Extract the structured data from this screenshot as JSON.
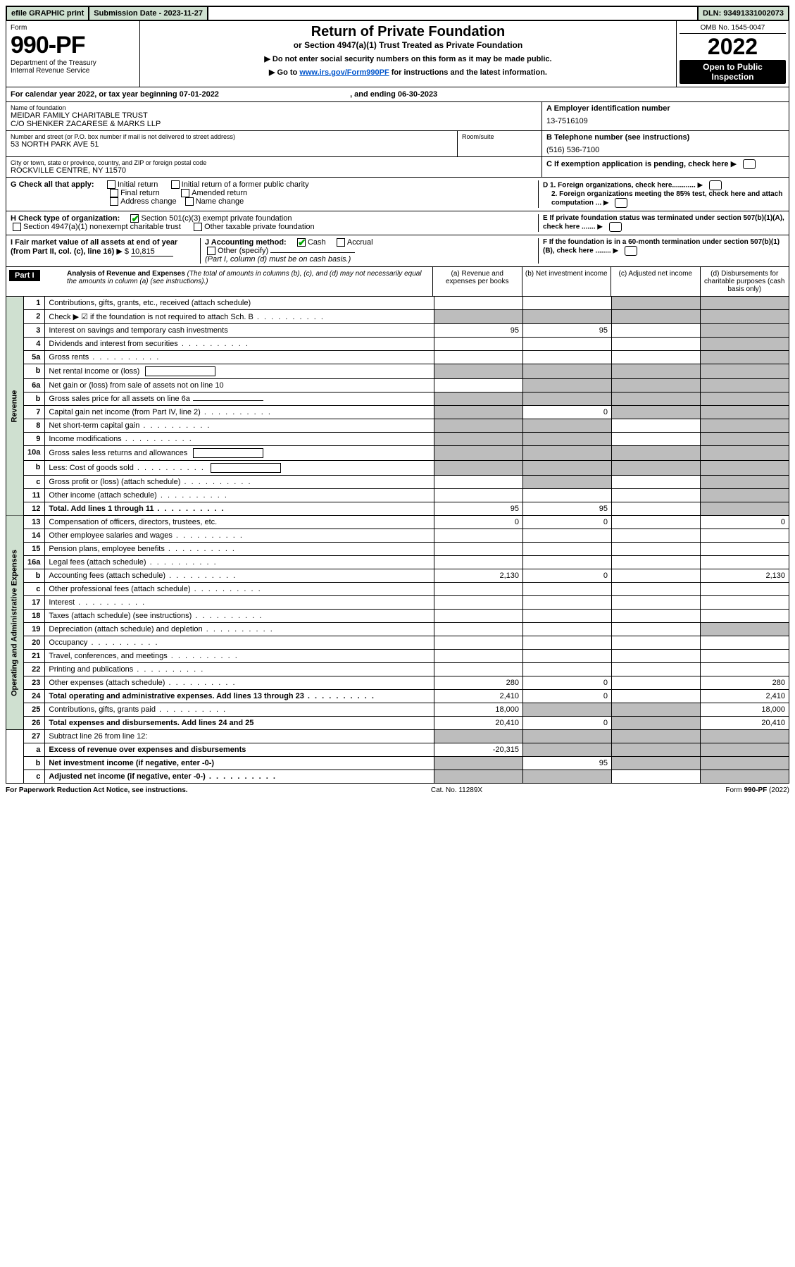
{
  "topbar": {
    "efile": "efile GRAPHIC print",
    "submission_label": "Submission Date - ",
    "submission_date": "2023-11-27",
    "dln_label": "DLN: ",
    "dln": "93491331002073"
  },
  "header": {
    "form_word": "Form",
    "form_number": "990-PF",
    "dept": "Department of the Treasury",
    "irs": "Internal Revenue Service",
    "title": "Return of Private Foundation",
    "subtitle": "or Section 4947(a)(1) Trust Treated as Private Foundation",
    "instr1": "▶ Do not enter social security numbers on this form as it may be made public.",
    "instr2_prefix": "▶ Go to ",
    "instr2_link": "www.irs.gov/Form990PF",
    "instr2_suffix": " for instructions and the latest information.",
    "omb": "OMB No. 1545-0047",
    "year": "2022",
    "open1": "Open to Public",
    "open2": "Inspection"
  },
  "calendar": {
    "prefix": "For calendar year 2022, or tax year beginning ",
    "begin": "07-01-2022",
    "mid": " , and ending ",
    "end": "06-30-2023"
  },
  "foundation": {
    "name_label": "Name of foundation",
    "name1": "MEIDAR FAMILY CHARITABLE TRUST",
    "name2": "C/O SHENKER ZACARESE & MARKS LLP",
    "addr_label": "Number and street (or P.O. box number if mail is not delivered to street address)",
    "addr": "53 NORTH PARK AVE 51",
    "room_label": "Room/suite",
    "city_label": "City or town, state or province, country, and ZIP or foreign postal code",
    "city": "ROCKVILLE CENTRE, NY  11570",
    "a_label": "A Employer identification number",
    "a_value": "13-7516109",
    "b_label": "B Telephone number (see instructions)",
    "b_value": "(516) 536-7100",
    "c_label": "C If exemption application is pending, check here"
  },
  "checks": {
    "g_label": "G Check all that apply:",
    "initial": "Initial return",
    "initial_former": "Initial return of a former public charity",
    "final": "Final return",
    "amended": "Amended return",
    "address": "Address change",
    "name_change": "Name change",
    "h_label": "H Check type of organization:",
    "h_501c3": "Section 501(c)(3) exempt private foundation",
    "h_4947": "Section 4947(a)(1) nonexempt charitable trust",
    "h_other": "Other taxable private foundation",
    "i_label": "I Fair market value of all assets at end of year (from Part II, col. (c), line 16)",
    "i_value": "10,815",
    "j_label": "J Accounting method:",
    "j_cash": "Cash",
    "j_accrual": "Accrual",
    "j_other": "Other (specify)",
    "j_note": "(Part I, column (d) must be on cash basis.)",
    "d1": "D 1. Foreign organizations, check here............",
    "d2": "2. Foreign organizations meeting the 85% test, check here and attach computation ...",
    "e": "E  If private foundation status was terminated under section 507(b)(1)(A), check here .......",
    "f": "F  If the foundation is in a 60-month termination under section 507(b)(1)(B), check here ........"
  },
  "part1": {
    "label": "Part I",
    "title": "Analysis of Revenue and Expenses",
    "title_note": " (The total of amounts in columns (b), (c), and (d) may not necessarily equal the amounts in column (a) (see instructions).)",
    "col_a": "(a)   Revenue and expenses per books",
    "col_b": "(b)   Net investment income",
    "col_c": "(c)   Adjusted net income",
    "col_d": "(d)   Disbursements for charitable purposes (cash basis only)"
  },
  "side_labels": {
    "revenue": "Revenue",
    "opadmin": "Operating and Administrative Expenses"
  },
  "lines": [
    {
      "n": "1",
      "desc": "Contributions, gifts, grants, etc., received (attach schedule)",
      "a": "",
      "b": "",
      "c": "grey",
      "d": "grey"
    },
    {
      "n": "2",
      "desc": "Check ▶ ☑ if the foundation is not required to attach Sch. B",
      "a": "grey",
      "b": "grey",
      "c": "grey",
      "d": "grey",
      "dots": true
    },
    {
      "n": "3",
      "desc": "Interest on savings and temporary cash investments",
      "a": "95",
      "b": "95",
      "c": "",
      "d": "grey"
    },
    {
      "n": "4",
      "desc": "Dividends and interest from securities",
      "a": "",
      "b": "",
      "c": "",
      "d": "grey",
      "dots": true
    },
    {
      "n": "5a",
      "desc": "Gross rents",
      "a": "",
      "b": "",
      "c": "",
      "d": "grey",
      "dots": true
    },
    {
      "n": "b",
      "desc": "Net rental income or (loss)",
      "a": "grey",
      "b": "grey",
      "c": "grey",
      "d": "grey",
      "inline_box": true
    },
    {
      "n": "6a",
      "desc": "Net gain or (loss) from sale of assets not on line 10",
      "a": "",
      "b": "grey",
      "c": "grey",
      "d": "grey"
    },
    {
      "n": "b",
      "desc": "Gross sales price for all assets on line 6a",
      "a": "grey",
      "b": "grey",
      "c": "grey",
      "d": "grey",
      "inline_underline": true
    },
    {
      "n": "7",
      "desc": "Capital gain net income (from Part IV, line 2)",
      "a": "grey",
      "b": "0",
      "c": "grey",
      "d": "grey",
      "dots": true
    },
    {
      "n": "8",
      "desc": "Net short-term capital gain",
      "a": "grey",
      "b": "grey",
      "c": "",
      "d": "grey",
      "dots": true
    },
    {
      "n": "9",
      "desc": "Income modifications",
      "a": "grey",
      "b": "grey",
      "c": "",
      "d": "grey",
      "dots": true
    },
    {
      "n": "10a",
      "desc": "Gross sales less returns and allowances",
      "a": "grey",
      "b": "grey",
      "c": "grey",
      "d": "grey",
      "inline_box": true
    },
    {
      "n": "b",
      "desc": "Less: Cost of goods sold",
      "a": "grey",
      "b": "grey",
      "c": "grey",
      "d": "grey",
      "inline_box": true,
      "dots": true
    },
    {
      "n": "c",
      "desc": "Gross profit or (loss) (attach schedule)",
      "a": "",
      "b": "grey",
      "c": "",
      "d": "grey",
      "dots": true
    },
    {
      "n": "11",
      "desc": "Other income (attach schedule)",
      "a": "",
      "b": "",
      "c": "",
      "d": "grey",
      "dots": true
    },
    {
      "n": "12",
      "desc": "Total. Add lines 1 through 11",
      "a": "95",
      "b": "95",
      "c": "",
      "d": "grey",
      "bold": true,
      "dots": true
    },
    {
      "n": "13",
      "desc": "Compensation of officers, directors, trustees, etc.",
      "a": "0",
      "b": "0",
      "c": "",
      "d": "0"
    },
    {
      "n": "14",
      "desc": "Other employee salaries and wages",
      "a": "",
      "b": "",
      "c": "",
      "d": "",
      "dots": true
    },
    {
      "n": "15",
      "desc": "Pension plans, employee benefits",
      "a": "",
      "b": "",
      "c": "",
      "d": "",
      "dots": true
    },
    {
      "n": "16a",
      "desc": "Legal fees (attach schedule)",
      "a": "",
      "b": "",
      "c": "",
      "d": "",
      "dots": true
    },
    {
      "n": "b",
      "desc": "Accounting fees (attach schedule)",
      "a": "2,130",
      "b": "0",
      "c": "",
      "d": "2,130",
      "dots": true
    },
    {
      "n": "c",
      "desc": "Other professional fees (attach schedule)",
      "a": "",
      "b": "",
      "c": "",
      "d": "",
      "dots": true
    },
    {
      "n": "17",
      "desc": "Interest",
      "a": "",
      "b": "",
      "c": "",
      "d": "",
      "dots": true
    },
    {
      "n": "18",
      "desc": "Taxes (attach schedule) (see instructions)",
      "a": "",
      "b": "",
      "c": "",
      "d": "",
      "dots": true
    },
    {
      "n": "19",
      "desc": "Depreciation (attach schedule) and depletion",
      "a": "",
      "b": "",
      "c": "",
      "d": "grey",
      "dots": true
    },
    {
      "n": "20",
      "desc": "Occupancy",
      "a": "",
      "b": "",
      "c": "",
      "d": "",
      "dots": true
    },
    {
      "n": "21",
      "desc": "Travel, conferences, and meetings",
      "a": "",
      "b": "",
      "c": "",
      "d": "",
      "dots": true
    },
    {
      "n": "22",
      "desc": "Printing and publications",
      "a": "",
      "b": "",
      "c": "",
      "d": "",
      "dots": true
    },
    {
      "n": "23",
      "desc": "Other expenses (attach schedule)",
      "a": "280",
      "b": "0",
      "c": "",
      "d": "280",
      "dots": true
    },
    {
      "n": "24",
      "desc": "Total operating and administrative expenses. Add lines 13 through 23",
      "a": "2,410",
      "b": "0",
      "c": "",
      "d": "2,410",
      "bold": true,
      "dots": true
    },
    {
      "n": "25",
      "desc": "Contributions, gifts, grants paid",
      "a": "18,000",
      "b": "grey",
      "c": "grey",
      "d": "18,000",
      "dots": true
    },
    {
      "n": "26",
      "desc": "Total expenses and disbursements. Add lines 24 and 25",
      "a": "20,410",
      "b": "0",
      "c": "grey",
      "d": "20,410",
      "bold": true
    },
    {
      "n": "27",
      "desc": "Subtract line 26 from line 12:",
      "a": "grey",
      "b": "grey",
      "c": "grey",
      "d": "grey"
    },
    {
      "n": "a",
      "desc": "Excess of revenue over expenses and disbursements",
      "a": "-20,315",
      "b": "grey",
      "c": "grey",
      "d": "grey",
      "bold": true
    },
    {
      "n": "b",
      "desc": "Net investment income (if negative, enter -0-)",
      "a": "grey",
      "b": "95",
      "c": "grey",
      "d": "grey",
      "bold": true
    },
    {
      "n": "c",
      "desc": "Adjusted net income (if negative, enter -0-)",
      "a": "grey",
      "b": "grey",
      "c": "",
      "d": "grey",
      "bold": true,
      "dots": true
    }
  ],
  "footer": {
    "left": "For Paperwork Reduction Act Notice, see instructions.",
    "mid": "Cat. No. 11289X",
    "right": "Form 990-PF (2022)"
  }
}
